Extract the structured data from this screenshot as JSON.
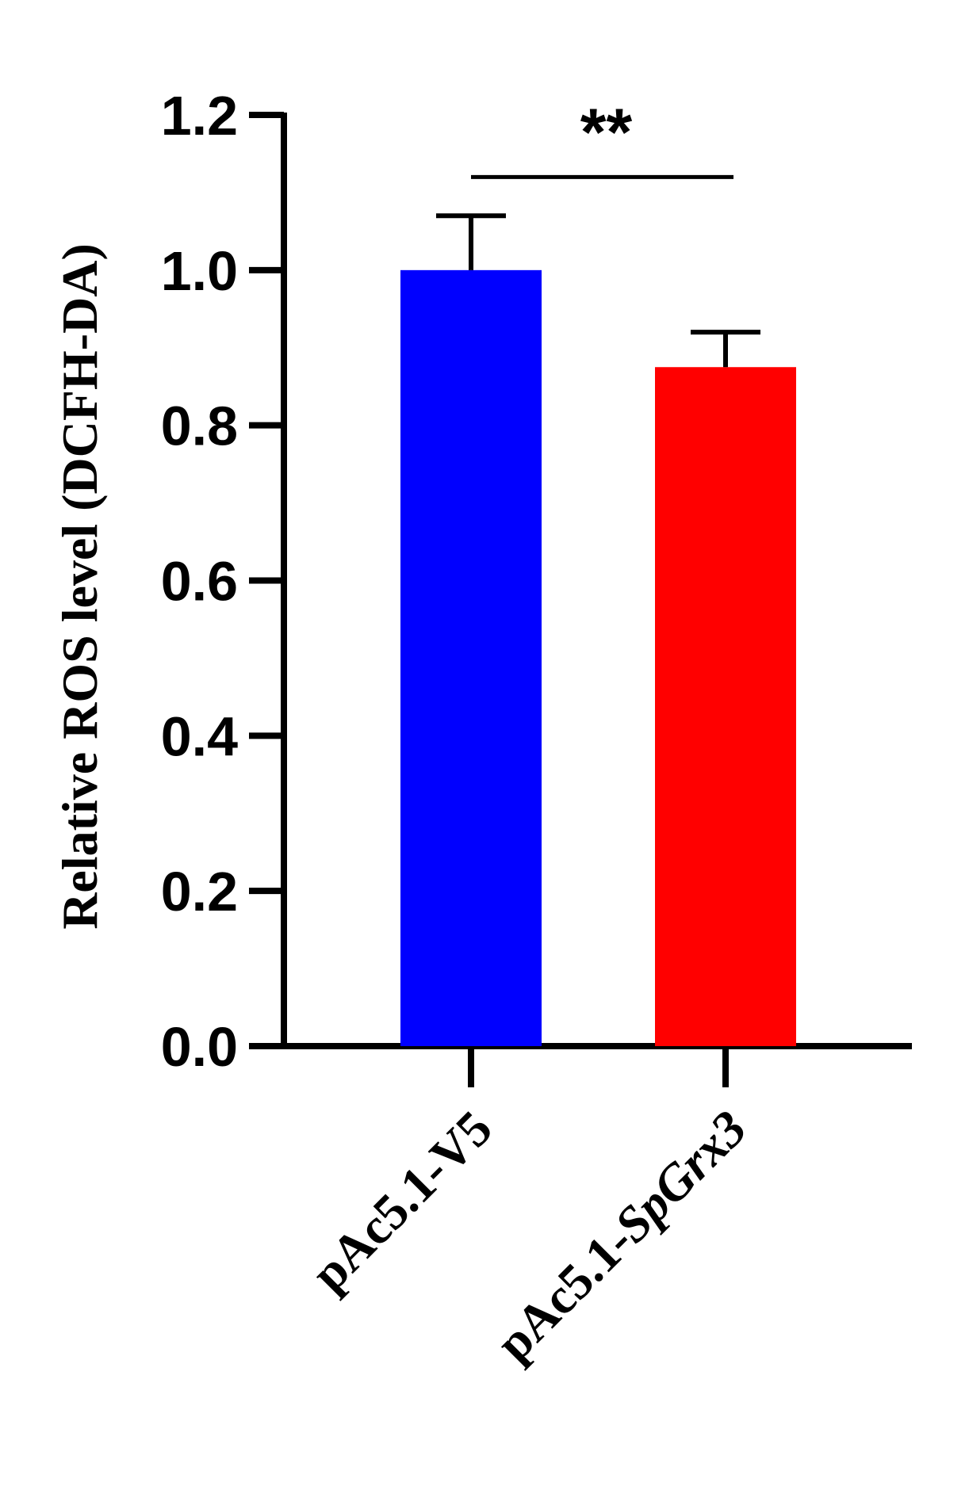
{
  "chart_data": {
    "type": "bar",
    "ylabel": "Relative ROS level (DCFH-DA)",
    "categories": [
      {
        "prefix": "pAc5.1-",
        "suffix": "V5",
        "suffix_italic": false
      },
      {
        "prefix": "pAc5.1-",
        "suffix": "SpGrx3",
        "suffix_italic": true
      }
    ],
    "values": [
      1.0,
      0.875
    ],
    "errors": [
      0.07,
      0.045
    ],
    "colors": [
      "#0000ff",
      "#ff0000"
    ],
    "ylim": [
      0,
      1.2
    ],
    "yticks": [
      "0.0",
      "0.2",
      "0.4",
      "0.6",
      "0.8",
      "1.0",
      "1.2"
    ],
    "significance": {
      "label": "**",
      "between": [
        0,
        1
      ],
      "y": 1.12
    },
    "grid": false,
    "legend": "none"
  }
}
